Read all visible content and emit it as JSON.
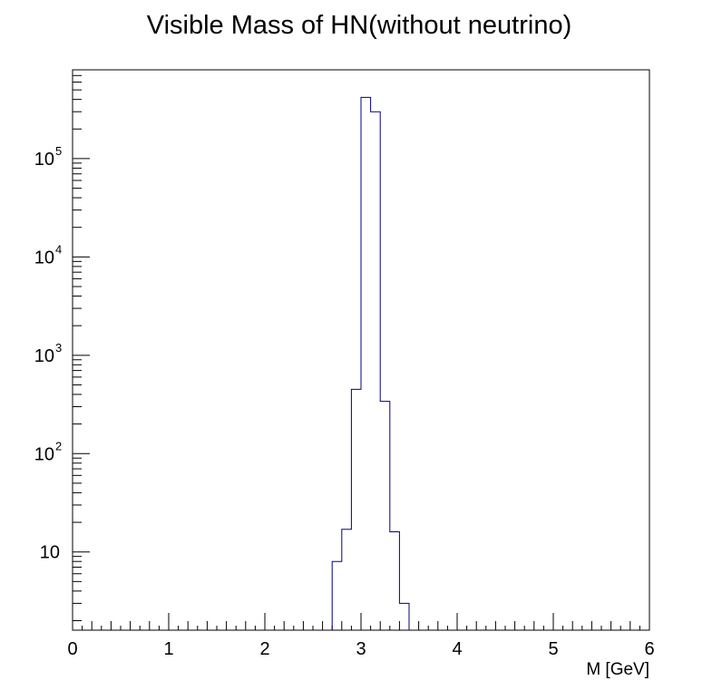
{
  "chart_data": {
    "type": "bar",
    "histogram": true,
    "title": "Visible Mass of HN(without neutrino)",
    "xlabel": "M [GeV]",
    "ylabel": "",
    "xlim": [
      0,
      6
    ],
    "y_scale": "log",
    "ylim": [
      1.6,
      800000
    ],
    "x_ticks": [
      "0",
      "1",
      "2",
      "3",
      "4",
      "5",
      "6"
    ],
    "y_ticks": [
      {
        "base": "10",
        "exp": ""
      },
      {
        "base": "10",
        "exp": "2"
      },
      {
        "base": "10",
        "exp": "3"
      },
      {
        "base": "10",
        "exp": "4"
      },
      {
        "base": "10",
        "exp": "5"
      }
    ],
    "line_color": "#000080",
    "bin_edges": [
      2.7,
      2.8,
      2.9,
      3.0,
      3.1,
      3.2,
      3.3,
      3.4,
      3.5
    ],
    "values": [
      8,
      17,
      450,
      420000,
      300000,
      340,
      16,
      3
    ],
    "grid": false,
    "legend": "none"
  }
}
